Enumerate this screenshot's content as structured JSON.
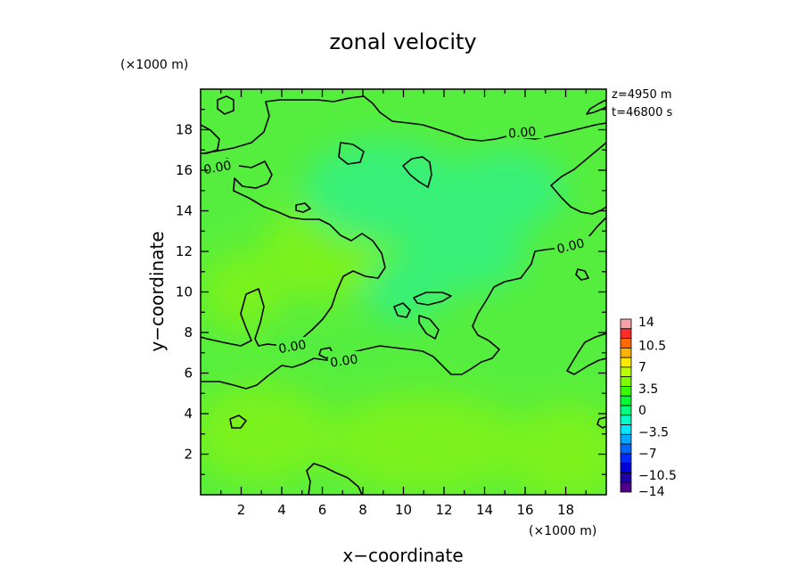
{
  "chart_data": {
    "type": "heatmap",
    "title": "zonal velocity",
    "xlabel": "x−coordinate",
    "ylabel": "y−coordinate",
    "x_unit": "(×1000 m)",
    "y_unit": "(×1000 m)",
    "xlim": [
      0,
      20
    ],
    "ylim": [
      0,
      20
    ],
    "x_ticks": [
      "2",
      "4",
      "6",
      "8",
      "10",
      "12",
      "14",
      "16",
      "18"
    ],
    "y_ticks": [
      "2",
      "4",
      "6",
      "8",
      "10",
      "12",
      "14",
      "16",
      "18"
    ],
    "annotations": [
      "z=4950 m",
      "t=46800 s"
    ],
    "contour_levels": [
      0.0
    ],
    "contour_labels": [
      "0.00",
      "0.00",
      "0.00",
      "0.00",
      "0.00"
    ],
    "colorbar": {
      "labels": [
        "14",
        "10.5",
        "7",
        "3.5",
        "0",
        "−3.5",
        "−7",
        "−10.5",
        "−14"
      ],
      "levels": [
        14,
        10.5,
        7,
        3.5,
        0,
        -3.5,
        -7,
        -10.5,
        -14
      ],
      "colors": [
        "#f5a3a8",
        "#ff2a2a",
        "#ff6a00",
        "#ffb300",
        "#ffe800",
        "#b8ff00",
        "#7cff00",
        "#38ff00",
        "#00ff30",
        "#00ff80",
        "#00ffc8",
        "#00e8ff",
        "#00a8ff",
        "#0068ff",
        "#0028ff",
        "#0000d8",
        "#2000a8",
        "#500088"
      ]
    },
    "field_colors": {
      "base": "#56ee3e",
      "positive": "#7af21e",
      "negative": "#38f078"
    }
  }
}
